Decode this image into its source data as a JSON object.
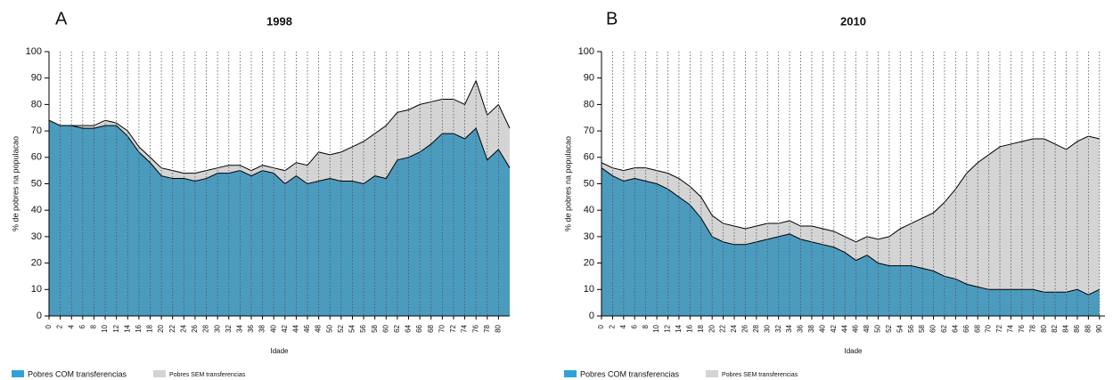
{
  "chart_data": [
    {
      "type": "area",
      "panel": "A",
      "title": "1998",
      "xlabel": "Idade",
      "ylabel": "% de pobres na populacao",
      "x": [
        0,
        2,
        4,
        6,
        8,
        10,
        12,
        14,
        16,
        18,
        20,
        22,
        24,
        26,
        28,
        30,
        32,
        34,
        36,
        38,
        40,
        42,
        44,
        46,
        48,
        50,
        52,
        54,
        56,
        58,
        60,
        62,
        64,
        66,
        68,
        70,
        72,
        74,
        76,
        78,
        80,
        82
      ],
      "series": [
        {
          "name": "Pobres SEM transferencias",
          "color": "#d4d4d4",
          "legend_color": "#d4d4d4",
          "values": [
            74,
            72,
            72,
            72,
            72,
            74,
            73,
            70,
            64,
            60,
            56,
            55,
            54,
            54,
            55,
            56,
            57,
            57,
            55,
            57,
            56,
            55,
            58,
            57,
            62,
            61,
            62,
            64,
            66,
            69,
            72,
            77,
            78,
            80,
            81,
            82,
            82,
            80,
            89,
            76,
            80,
            71
          ]
        },
        {
          "name": "Pobres COM transferencias",
          "color": "#4b9bbf",
          "legend_color": "#2fa3d8",
          "values": [
            74,
            72,
            72,
            71,
            71,
            72,
            72,
            68,
            62,
            58,
            53,
            52,
            52,
            51,
            52,
            54,
            54,
            55,
            53,
            55,
            54,
            50,
            53,
            50,
            51,
            52,
            51,
            51,
            50,
            53,
            52,
            59,
            60,
            62,
            65,
            69,
            69,
            67,
            71,
            59,
            63,
            56
          ]
        }
      ],
      "legend_order": [
        1,
        0
      ],
      "xlim": [
        0,
        82
      ],
      "xticks": [
        0,
        2,
        4,
        6,
        8,
        10,
        12,
        14,
        16,
        18,
        20,
        22,
        24,
        26,
        28,
        30,
        32,
        34,
        36,
        38,
        40,
        42,
        44,
        46,
        48,
        50,
        52,
        54,
        56,
        58,
        60,
        62,
        64,
        66,
        68,
        70,
        72,
        74,
        76,
        78,
        80
      ],
      "ylim": [
        0,
        100
      ],
      "yticks": [
        0,
        10,
        20,
        30,
        40,
        50,
        60,
        70,
        80,
        90,
        100
      ],
      "xgrid": true
    },
    {
      "type": "area",
      "panel": "B",
      "title": "2010",
      "xlabel": "Idade",
      "ylabel": "% de pobres na populacao",
      "x": [
        0,
        2,
        4,
        6,
        8,
        10,
        12,
        14,
        16,
        18,
        20,
        22,
        24,
        26,
        28,
        30,
        32,
        34,
        36,
        38,
        40,
        42,
        44,
        46,
        48,
        50,
        52,
        54,
        56,
        58,
        60,
        62,
        64,
        66,
        68,
        70,
        72,
        74,
        76,
        78,
        80,
        82,
        84,
        86,
        88,
        90
      ],
      "series": [
        {
          "name": "Pobres SEM transferencias",
          "color": "#d4d4d4",
          "legend_color": "#d4d4d4",
          "values": [
            58,
            56,
            55,
            56,
            56,
            55,
            54,
            52,
            49,
            45,
            38,
            35,
            34,
            33,
            34,
            35,
            35,
            36,
            34,
            34,
            33,
            32,
            30,
            28,
            30,
            29,
            30,
            33,
            35,
            37,
            39,
            43,
            48,
            54,
            58,
            61,
            64,
            65,
            66,
            67,
            67,
            65,
            63,
            66,
            68,
            67
          ]
        },
        {
          "name": "Pobres COM transferencias",
          "color": "#4b9bbf",
          "legend_color": "#2fa3d8",
          "values": [
            56,
            53,
            51,
            52,
            51,
            50,
            48,
            45,
            42,
            37,
            30,
            28,
            27,
            27,
            28,
            29,
            30,
            31,
            29,
            28,
            27,
            26,
            24,
            21,
            23,
            20,
            19,
            19,
            19,
            18,
            17,
            15,
            14,
            12,
            11,
            10,
            10,
            10,
            10,
            10,
            9,
            9,
            9,
            10,
            8,
            10
          ]
        }
      ],
      "legend_order": [
        1,
        0
      ],
      "xlim": [
        0,
        91
      ],
      "xticks": [
        0,
        2,
        4,
        6,
        8,
        10,
        12,
        14,
        16,
        18,
        20,
        22,
        24,
        26,
        28,
        30,
        32,
        34,
        36,
        38,
        40,
        42,
        44,
        46,
        48,
        50,
        52,
        54,
        56,
        58,
        60,
        62,
        64,
        66,
        68,
        70,
        72,
        74,
        76,
        78,
        80,
        82,
        84,
        86,
        88,
        90
      ],
      "ylim": [
        0,
        100
      ],
      "yticks": [
        0,
        10,
        20,
        30,
        40,
        50,
        60,
        70,
        80,
        90,
        100
      ],
      "xgrid": true
    }
  ]
}
